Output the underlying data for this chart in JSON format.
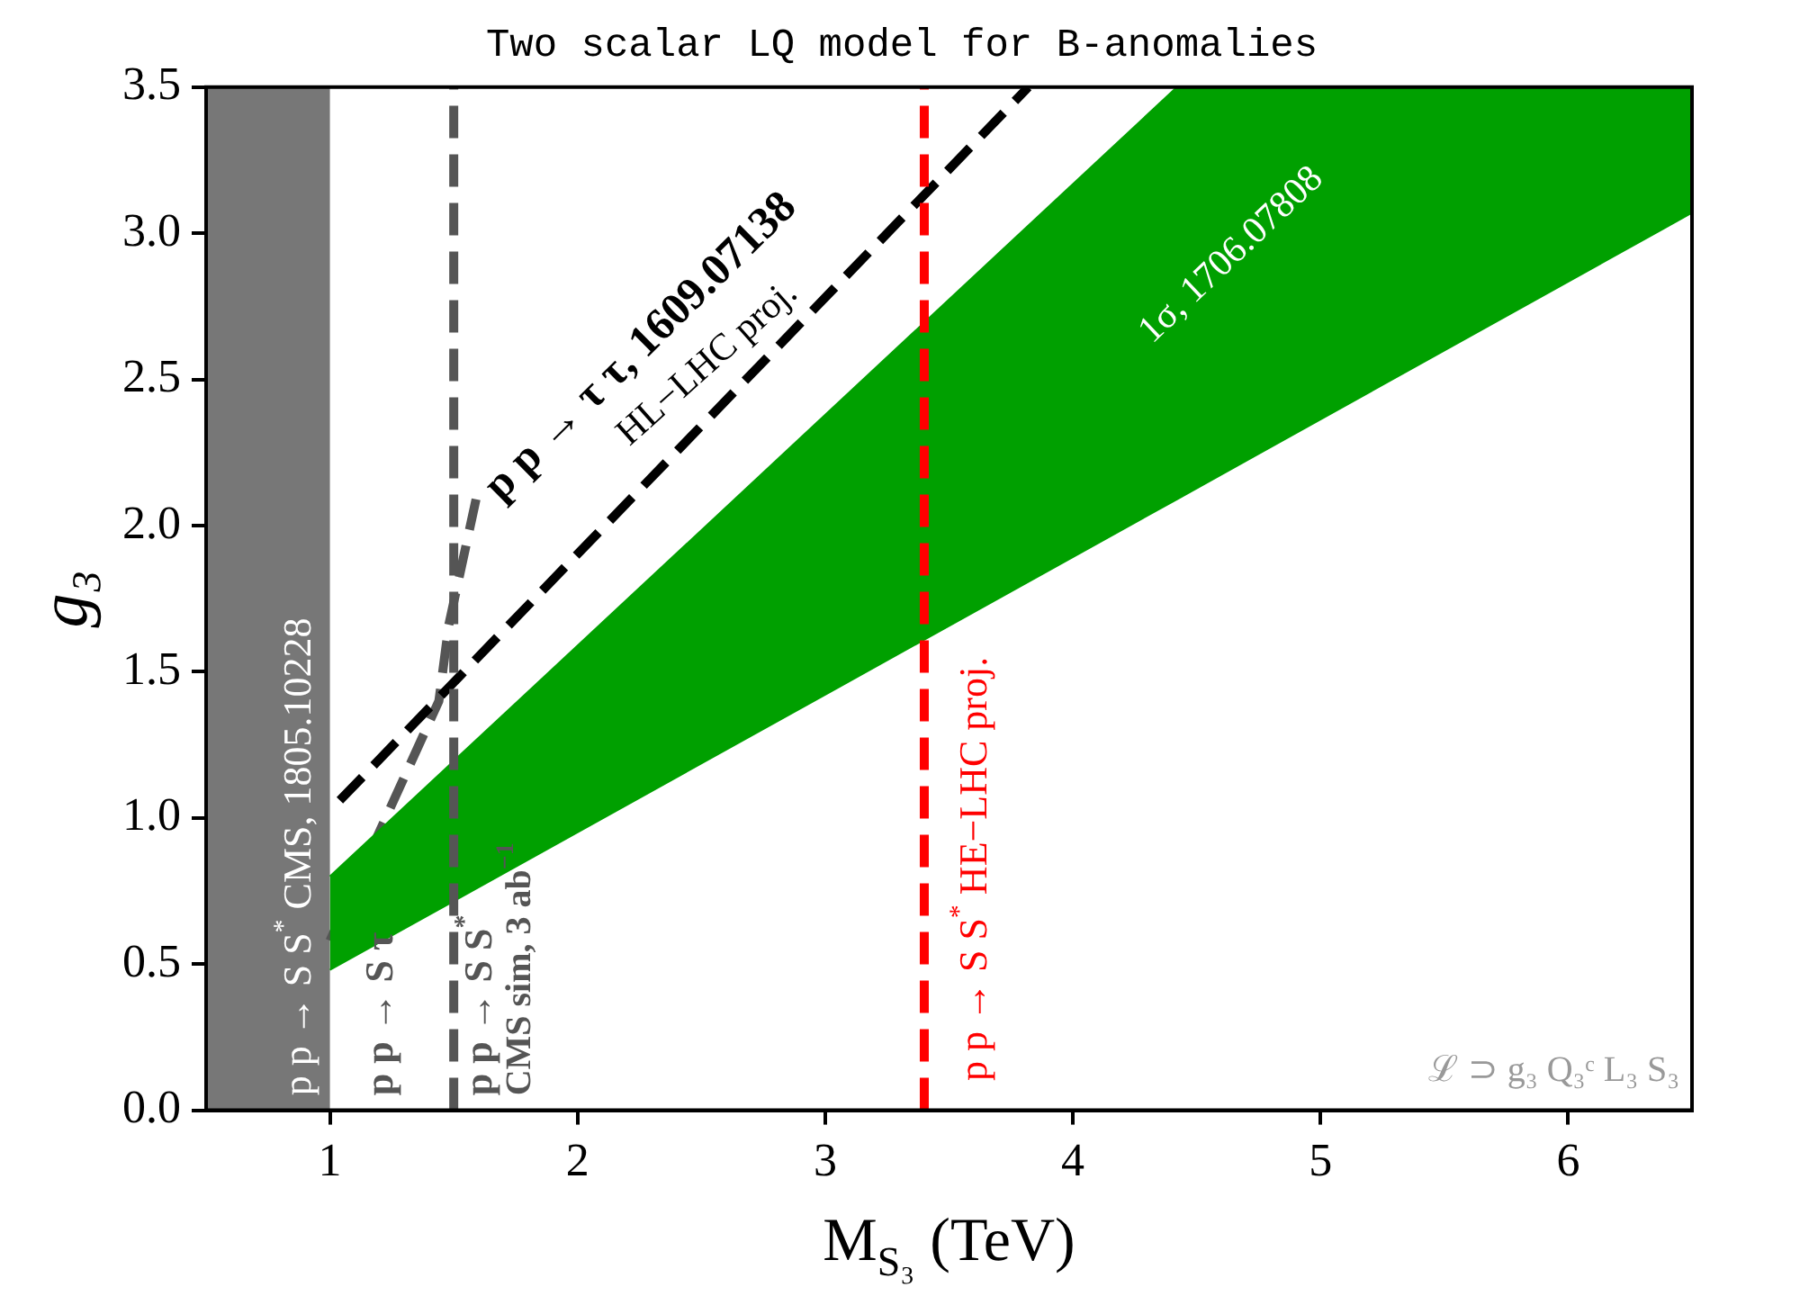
{
  "chart_data": {
    "type": "line",
    "title": "Two scalar LQ model for B-anomalies",
    "xlabel": "M$_{S₃}$ (TeV)",
    "ylabel": "g₃",
    "xlim": [
      0.5,
      6.5
    ],
    "xticks": [
      1,
      2,
      3,
      4,
      5,
      6
    ],
    "ylim": [
      0,
      3.5
    ],
    "yticks": [
      {
        "value": 0,
        "label": "0.0"
      },
      {
        "value": 0.5,
        "label": "0.5"
      },
      {
        "value": 1,
        "label": "1.0"
      },
      {
        "value": 1.5,
        "label": "1.5"
      },
      {
        "value": 2,
        "label": "2.0"
      },
      {
        "value": 2.5,
        "label": "2.5"
      },
      {
        "value": 3,
        "label": "3.0"
      },
      {
        "value": 3.5,
        "label": "3.5"
      }
    ],
    "grid": false,
    "legend": false,
    "marker": "none",
    "series": [
      {
        "type": "area",
        "color": "#00a000",
        "x": [
          1,
          4.42,
          6.5
        ],
        "values": [
          null,
          null,
          null
        ],
        "lower": [
          0.48,
          2.09,
          3.07
        ],
        "upper": [
          0.8,
          3.5,
          3.5
        ]
      },
      {
        "type": "line",
        "color": "#000000",
        "line_style": "dashed",
        "x": [
          1.04,
          3.82
        ],
        "values": [
          1.06,
          3.5
        ]
      },
      {
        "type": "line",
        "color": "#555555",
        "line_style": "dashed",
        "x": [
          1.0,
          1.44,
          1.48,
          1.59
        ],
        "values": [
          0.58,
          1.4,
          1.66,
          2.09
        ]
      }
    ],
    "ref_lines": [
      {
        "axis": "x",
        "value": 1.5,
        "color": "#555555",
        "line_style": "dashed"
      },
      {
        "axis": "x",
        "value": 3.4,
        "color": "#ff0000",
        "line_style": "dashed"
      }
    ],
    "bands": [
      {
        "axis": "x",
        "from": 0.5,
        "to": 1.0,
        "color": "#777777"
      }
    ],
    "annotations": [
      "p p → S S$^{*}$ CMS, 1805.10228",
      "p p → S τ",
      "p p → S S$^{*}$",
      "CMS sim, 3 ab$^{−1}$",
      "p p → τ τ, 1609.07138",
      "HL−LHC proj.",
      "p p → S S$^{*}$ HE−LHC proj.",
      "1σ, 1706.07808",
      "ℒ ⊃ g₃ Q₃ᶜ L₃ S₃"
    ]
  }
}
